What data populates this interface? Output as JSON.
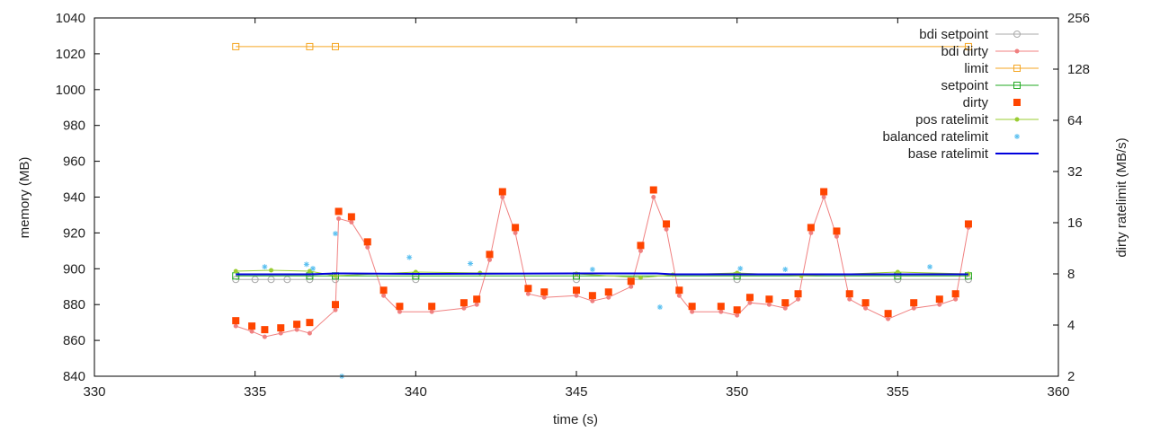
{
  "chart_data": {
    "type": "line",
    "title": "",
    "xlabel": "time (s)",
    "ylabel": "memory (MB)",
    "y2label": "dirty ratelimit (MB/s)",
    "xlim": [
      330,
      360
    ],
    "ylim": [
      840,
      1040
    ],
    "y2lim": [
      2,
      256
    ],
    "y2_scale": "log2",
    "x_ticks": [
      "330",
      "335",
      "340",
      "345",
      "350",
      "355",
      "360"
    ],
    "y_ticks": [
      "840",
      "860",
      "880",
      "900",
      "920",
      "940",
      "960",
      "980",
      "1000",
      "1020",
      "1040"
    ],
    "y2_ticks": [
      "2",
      "4",
      "8",
      "16",
      "32",
      "64",
      "128",
      "256"
    ],
    "grid": false,
    "legend_position": "top-right",
    "series": [
      {
        "name": "bdi setpoint",
        "axis": "y",
        "style": "line-points",
        "color": "#aaaaaa",
        "marker": "circle",
        "x": [
          334.4,
          335.0,
          335.5,
          336.0,
          336.7,
          337.5,
          340.0,
          345.0,
          350.0,
          355.0,
          357.2
        ],
        "y": [
          894,
          894,
          894,
          894,
          894,
          894,
          894,
          894,
          894,
          894,
          894
        ]
      },
      {
        "name": "bdi dirty",
        "axis": "y",
        "style": "line-points",
        "color": "#f08080",
        "marker": "dot",
        "x": [
          334.4,
          334.9,
          335.3,
          335.8,
          336.3,
          336.7,
          337.5,
          337.6,
          338.0,
          338.5,
          339.0,
          339.5,
          340.5,
          341.5,
          341.9,
          342.3,
          342.7,
          343.1,
          343.5,
          344.0,
          345.0,
          345.5,
          346.0,
          346.7,
          347.0,
          347.4,
          347.8,
          348.2,
          348.6,
          349.5,
          350.0,
          350.4,
          351.0,
          351.5,
          351.9,
          352.3,
          352.7,
          353.1,
          353.5,
          354.0,
          354.7,
          355.5,
          356.3,
          356.8,
          357.2
        ],
        "y": [
          868,
          865,
          862,
          864,
          866,
          864,
          877,
          928,
          926,
          912,
          885,
          876,
          876,
          878,
          880,
          905,
          940,
          920,
          886,
          884,
          885,
          882,
          884,
          890,
          910,
          940,
          922,
          885,
          876,
          876,
          874,
          881,
          880,
          878,
          883,
          920,
          940,
          918,
          883,
          878,
          872,
          878,
          880,
          883,
          923
        ]
      },
      {
        "name": "limit",
        "axis": "y",
        "style": "line-points",
        "color": "#f5a623",
        "marker": "square-open",
        "x": [
          334.4,
          336.7,
          337.5,
          357.2
        ],
        "y": [
          1024,
          1024,
          1024,
          1024
        ]
      },
      {
        "name": "setpoint",
        "axis": "y",
        "style": "line-points",
        "color": "#22aa22",
        "marker": "square-open",
        "x": [
          334.4,
          336.7,
          337.5,
          340.0,
          345.0,
          350.0,
          355.0,
          357.2
        ],
        "y": [
          896,
          896,
          896,
          896,
          896,
          896,
          896,
          896
        ]
      },
      {
        "name": "dirty",
        "axis": "y",
        "style": "points",
        "color": "#ff4500",
        "marker": "square",
        "x": [
          334.4,
          334.9,
          335.3,
          335.8,
          336.3,
          336.7,
          337.5,
          337.6,
          338.0,
          338.5,
          339.0,
          339.5,
          340.5,
          341.5,
          341.9,
          342.3,
          342.7,
          343.1,
          343.5,
          344.0,
          345.0,
          345.5,
          346.0,
          346.7,
          347.0,
          347.4,
          347.8,
          348.2,
          348.6,
          349.5,
          350.0,
          350.4,
          351.0,
          351.5,
          351.9,
          352.3,
          352.7,
          353.1,
          353.5,
          354.0,
          354.7,
          355.5,
          356.3,
          356.8,
          357.2
        ],
        "y": [
          871,
          868,
          866,
          867,
          869,
          870,
          880,
          932,
          929,
          915,
          888,
          879,
          879,
          881,
          883,
          908,
          943,
          923,
          889,
          887,
          888,
          885,
          887,
          893,
          913,
          944,
          925,
          888,
          879,
          879,
          877,
          884,
          883,
          881,
          886,
          923,
          943,
          921,
          886,
          881,
          875,
          881,
          883,
          886,
          925
        ]
      },
      {
        "name": "pos ratelimit",
        "axis": "y2",
        "style": "line-points",
        "color": "#9acd32",
        "marker": "dot",
        "x": [
          334.4,
          335.5,
          336.7,
          337.5,
          340.0,
          342.0,
          345.0,
          347.0,
          348.0,
          350.0,
          352.0,
          355.0,
          357.2
        ],
        "y": [
          8.3,
          8.4,
          8.3,
          7.8,
          8.2,
          8.1,
          8.0,
          7.6,
          7.9,
          8.1,
          7.8,
          8.2,
          8.0
        ]
      },
      {
        "name": "balanced ratelimit",
        "axis": "y2",
        "style": "points",
        "color": "#5bc0f0",
        "marker": "star",
        "x": [
          335.3,
          336.6,
          336.8,
          337.5,
          337.7,
          339.8,
          341.7,
          345.5,
          347.6,
          350.1,
          351.5,
          356.0
        ],
        "y": [
          8.8,
          9.1,
          8.6,
          13.8,
          2.0,
          10.0,
          9.2,
          8.5,
          5.1,
          8.6,
          8.5,
          8.8
        ]
      },
      {
        "name": "base ratelimit",
        "axis": "y2",
        "style": "line",
        "color": "#0000dd",
        "marker": "none",
        "x": [
          334.4,
          336.7,
          337.5,
          340.0,
          345.0,
          347.5,
          348.0,
          350.0,
          352.0,
          355.0,
          357.2
        ],
        "y": [
          7.95,
          7.95,
          8.05,
          8.0,
          8.05,
          8.05,
          7.95,
          7.95,
          7.95,
          7.95,
          7.95
        ]
      }
    ]
  }
}
